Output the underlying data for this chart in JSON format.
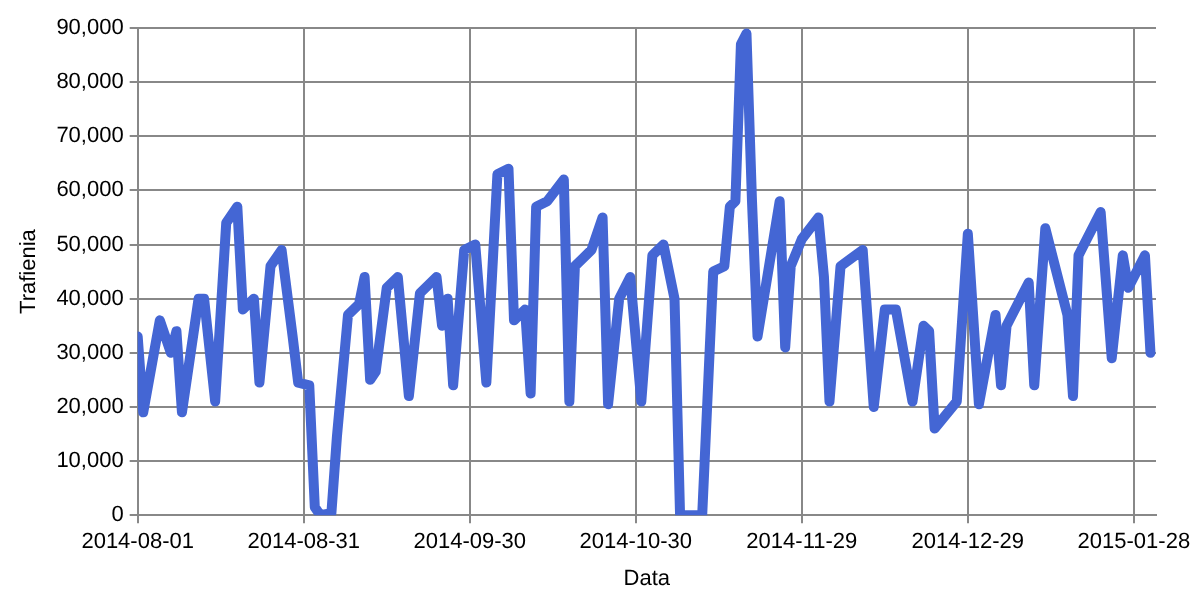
{
  "chart_data": {
    "type": "line",
    "xlabel": "Data",
    "ylabel": "Trafienia",
    "legend": false,
    "grid": true,
    "marker": "none",
    "line_style": "solid",
    "xlim": [
      "2014-08-01",
      "2015-02-01"
    ],
    "xticks": [
      "2014-08-01",
      "2014-08-31",
      "2014-09-30",
      "2014-10-30",
      "2014-11-29",
      "2014-12-29",
      "2015-01-28"
    ],
    "ylim": [
      0,
      90000
    ],
    "yticks": [
      {
        "value": 0,
        "label": "0"
      },
      {
        "value": 10000,
        "label": "10,000"
      },
      {
        "value": 20000,
        "label": "20,000"
      },
      {
        "value": 30000,
        "label": "30,000"
      },
      {
        "value": 40000,
        "label": "40,000"
      },
      {
        "value": 50000,
        "label": "50,000"
      },
      {
        "value": 60000,
        "label": "60,000"
      },
      {
        "value": 70000,
        "label": "70,000"
      },
      {
        "value": 80000,
        "label": "80,000"
      },
      {
        "value": 90000,
        "label": "90,000"
      }
    ],
    "x": [
      "2014-08-01",
      "2014-08-02",
      "2014-08-05",
      "2014-08-07",
      "2014-08-08",
      "2014-08-09",
      "2014-08-12",
      "2014-08-13",
      "2014-08-15",
      "2014-08-17",
      "2014-08-19",
      "2014-08-20",
      "2014-08-22",
      "2014-08-23",
      "2014-08-25",
      "2014-08-27",
      "2014-08-29",
      "2014-08-30",
      "2014-09-01",
      "2014-09-02",
      "2014-09-03",
      "2014-09-05",
      "2014-09-06",
      "2014-09-08",
      "2014-09-10",
      "2014-09-11",
      "2014-09-12",
      "2014-09-13",
      "2014-09-15",
      "2014-09-17",
      "2014-09-19",
      "2014-09-21",
      "2014-09-24",
      "2014-09-25",
      "2014-09-26",
      "2014-09-27",
      "2014-09-29",
      "2014-10-01",
      "2014-10-03",
      "2014-10-05",
      "2014-10-07",
      "2014-10-08",
      "2014-10-10",
      "2014-10-11",
      "2014-10-12",
      "2014-10-14",
      "2014-10-17",
      "2014-10-18",
      "2014-10-19",
      "2014-10-22",
      "2014-10-24",
      "2014-10-25",
      "2014-10-27",
      "2014-10-29",
      "2014-10-31",
      "2014-11-02",
      "2014-11-04",
      "2014-11-06",
      "2014-11-07",
      "2014-11-11",
      "2014-11-13",
      "2014-11-15",
      "2014-11-16",
      "2014-11-17",
      "2014-11-18",
      "2014-11-19",
      "2014-11-20",
      "2014-11-21",
      "2014-11-25",
      "2014-11-26",
      "2014-11-27",
      "2014-11-29",
      "2014-12-02",
      "2014-12-03",
      "2014-12-04",
      "2014-12-06",
      "2014-12-10",
      "2014-12-12",
      "2014-12-14",
      "2014-12-16",
      "2014-12-19",
      "2014-12-21",
      "2014-12-22",
      "2014-12-23",
      "2014-12-27",
      "2014-12-29",
      "2014-12-31",
      "2015-01-03",
      "2015-01-04",
      "2015-01-05",
      "2015-01-08",
      "2015-01-09",
      "2015-01-10",
      "2015-01-12",
      "2015-01-16",
      "2015-01-17",
      "2015-01-18",
      "2015-01-22",
      "2015-01-24",
      "2015-01-26",
      "2015-01-27",
      "2015-01-30",
      "2015-01-31"
    ],
    "series": [
      {
        "color": "#4466d4",
        "values": [
          33000,
          19000,
          36000,
          30000,
          34000,
          19000,
          40000,
          40000,
          21000,
          54000,
          57000,
          38000,
          40000,
          24500,
          46000,
          49000,
          33000,
          24500,
          24000,
          1500,
          0,
          400,
          14500,
          37000,
          39000,
          44000,
          25000,
          26500,
          42000,
          44000,
          22000,
          41000,
          44000,
          35000,
          40000,
          24000,
          49000,
          50000,
          24500,
          63000,
          64000,
          36000,
          38000,
          22500,
          57000,
          58000,
          62000,
          21000,
          46000,
          49000,
          55000,
          20500,
          40000,
          44000,
          21000,
          48000,
          50000,
          40000,
          0,
          0,
          45000,
          46000,
          57000,
          58000,
          87000,
          89000,
          58000,
          33000,
          58000,
          31000,
          46000,
          51000,
          55000,
          44000,
          21000,
          46000,
          49000,
          20000,
          38000,
          38000,
          21000,
          35000,
          34000,
          16000,
          21000,
          52000,
          20500,
          37000,
          24000,
          35000,
          41000,
          43000,
          24000,
          53000,
          37000,
          22000,
          48000,
          56000,
          29000,
          48000,
          42000,
          48000,
          30000
        ]
      }
    ]
  }
}
